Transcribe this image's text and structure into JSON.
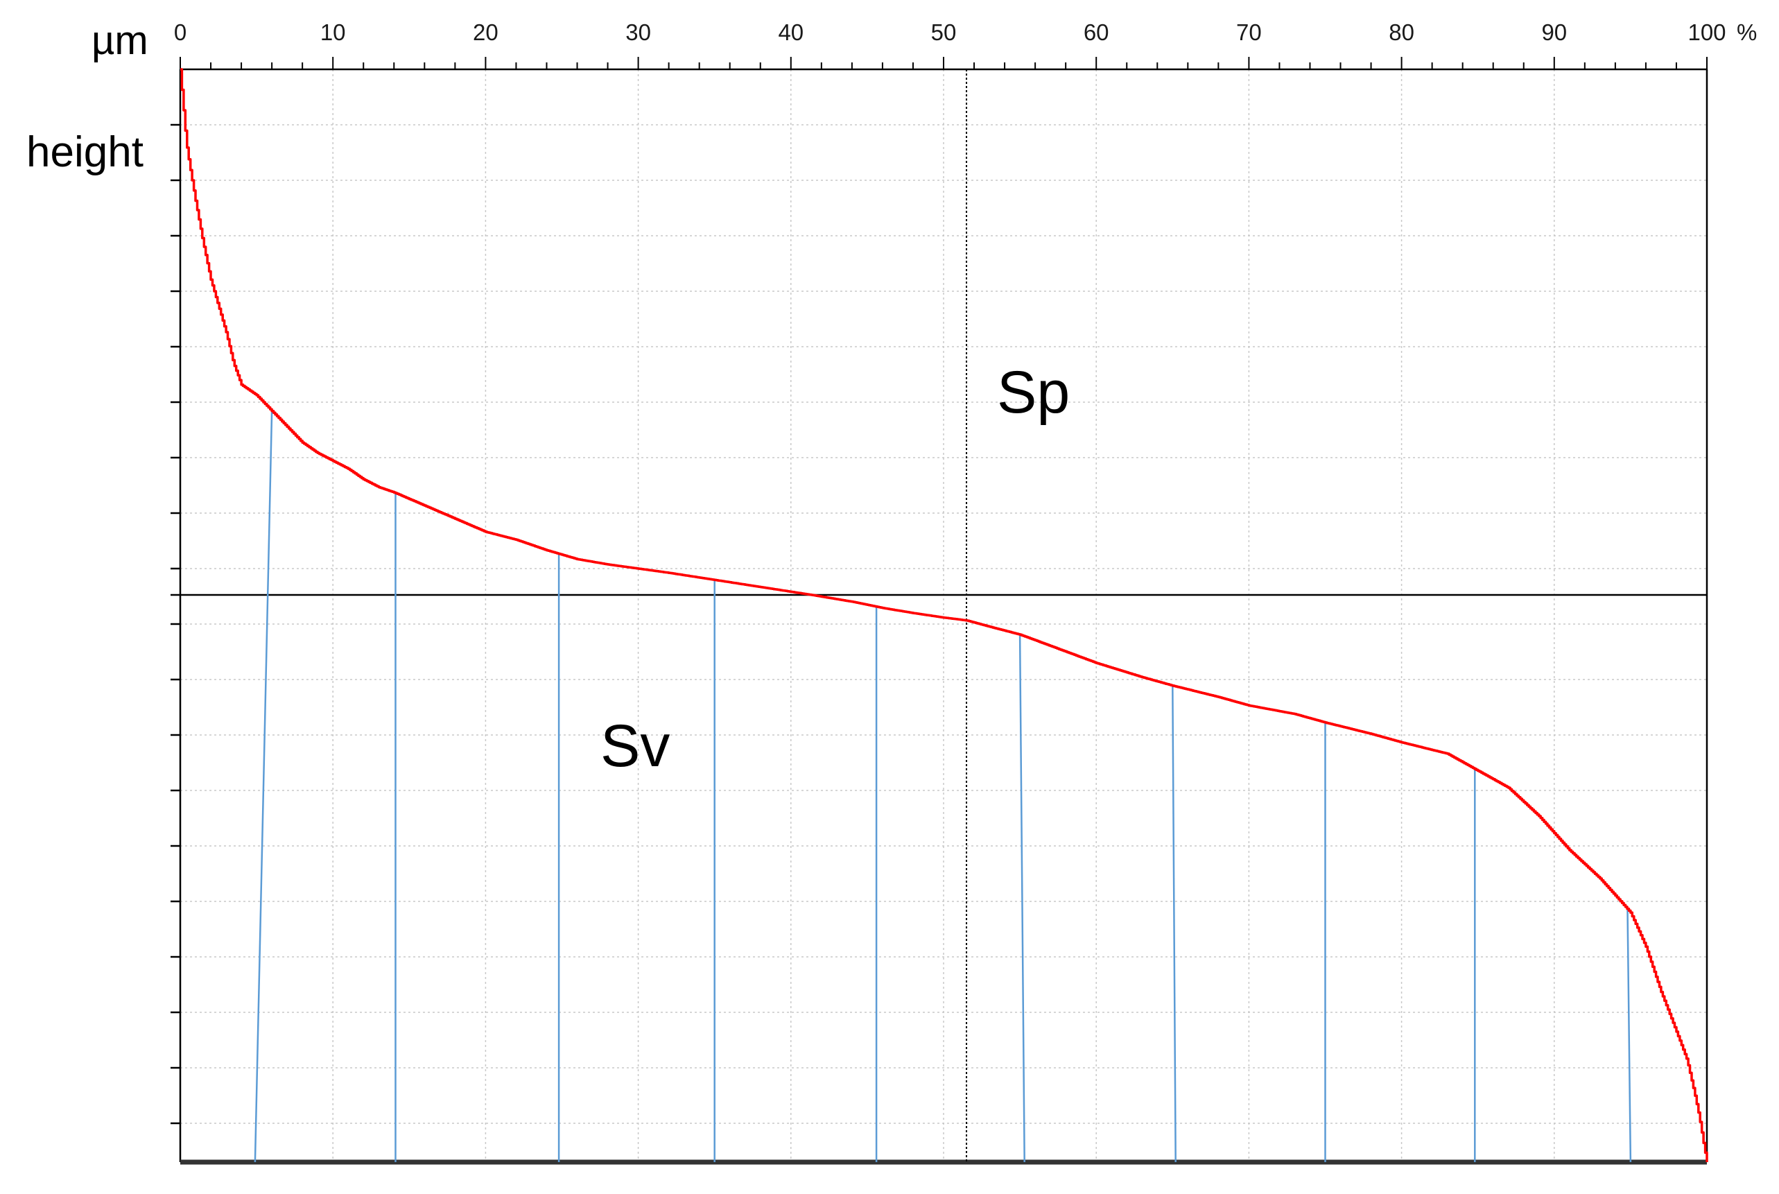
{
  "chart_data": {
    "type": "line",
    "title": "",
    "xlabel": "%",
    "ylabel": "height",
    "y_unit": "µm",
    "xlim": [
      0,
      100
    ],
    "x_ticks": [
      0,
      10,
      20,
      30,
      40,
      50,
      60,
      70,
      80,
      90,
      100
    ],
    "x_tick_labels": [
      "0",
      "10",
      "20",
      "30",
      "40",
      "50",
      "60",
      "70",
      "80",
      "90",
      "100"
    ],
    "grid": true,
    "mean_line_x": 51.5,
    "regions": [
      {
        "label": "Sp",
        "position": "upper-right of mean line"
      },
      {
        "label": "Sv",
        "position": "lower-left of mean line"
      }
    ],
    "series": [
      {
        "color": "#ff0000",
        "x": [
          0,
          0.2,
          0.4,
          0.6,
          1,
          1.5,
          2,
          2.5,
          3,
          3.5,
          4,
          5,
          6,
          7,
          8,
          9,
          10,
          11,
          12,
          13,
          14,
          16,
          18,
          20,
          22,
          24,
          26,
          28,
          30,
          32,
          34,
          36,
          38,
          40,
          42,
          44,
          46,
          48,
          50,
          51.5,
          53,
          55,
          57,
          60,
          63,
          65,
          68,
          70,
          73,
          75,
          78,
          80,
          83,
          85,
          87,
          89,
          91,
          93,
          95,
          96,
          97,
          98,
          98.7,
          99.2,
          99.5,
          99.8,
          100
        ],
        "y": [
          100,
          93,
          86,
          82,
          75,
          67,
          60,
          55,
          50,
          44,
          40,
          38,
          35,
          32,
          29,
          27,
          25.5,
          24,
          22,
          20.5,
          19.5,
          17,
          14.5,
          12,
          10.5,
          8.5,
          6.8,
          5.8,
          5,
          4.2,
          3.3,
          2.4,
          1.5,
          0.6,
          -0.3,
          -1.2,
          -2.3,
          -3.2,
          -4,
          -4.5,
          -5.6,
          -7,
          -9,
          -12,
          -14.5,
          -16,
          -18,
          -19.5,
          -21,
          -22.5,
          -24.5,
          -26,
          -28,
          -31,
          -34,
          -39,
          -45,
          -50,
          -56,
          -62,
          -70,
          -77,
          -82,
          -88,
          -92,
          -97,
          -100
        ]
      }
    ],
    "annotations": [
      {
        "type": "projection-lines",
        "color": "#5b9bd5",
        "count": 10
      }
    ]
  }
}
